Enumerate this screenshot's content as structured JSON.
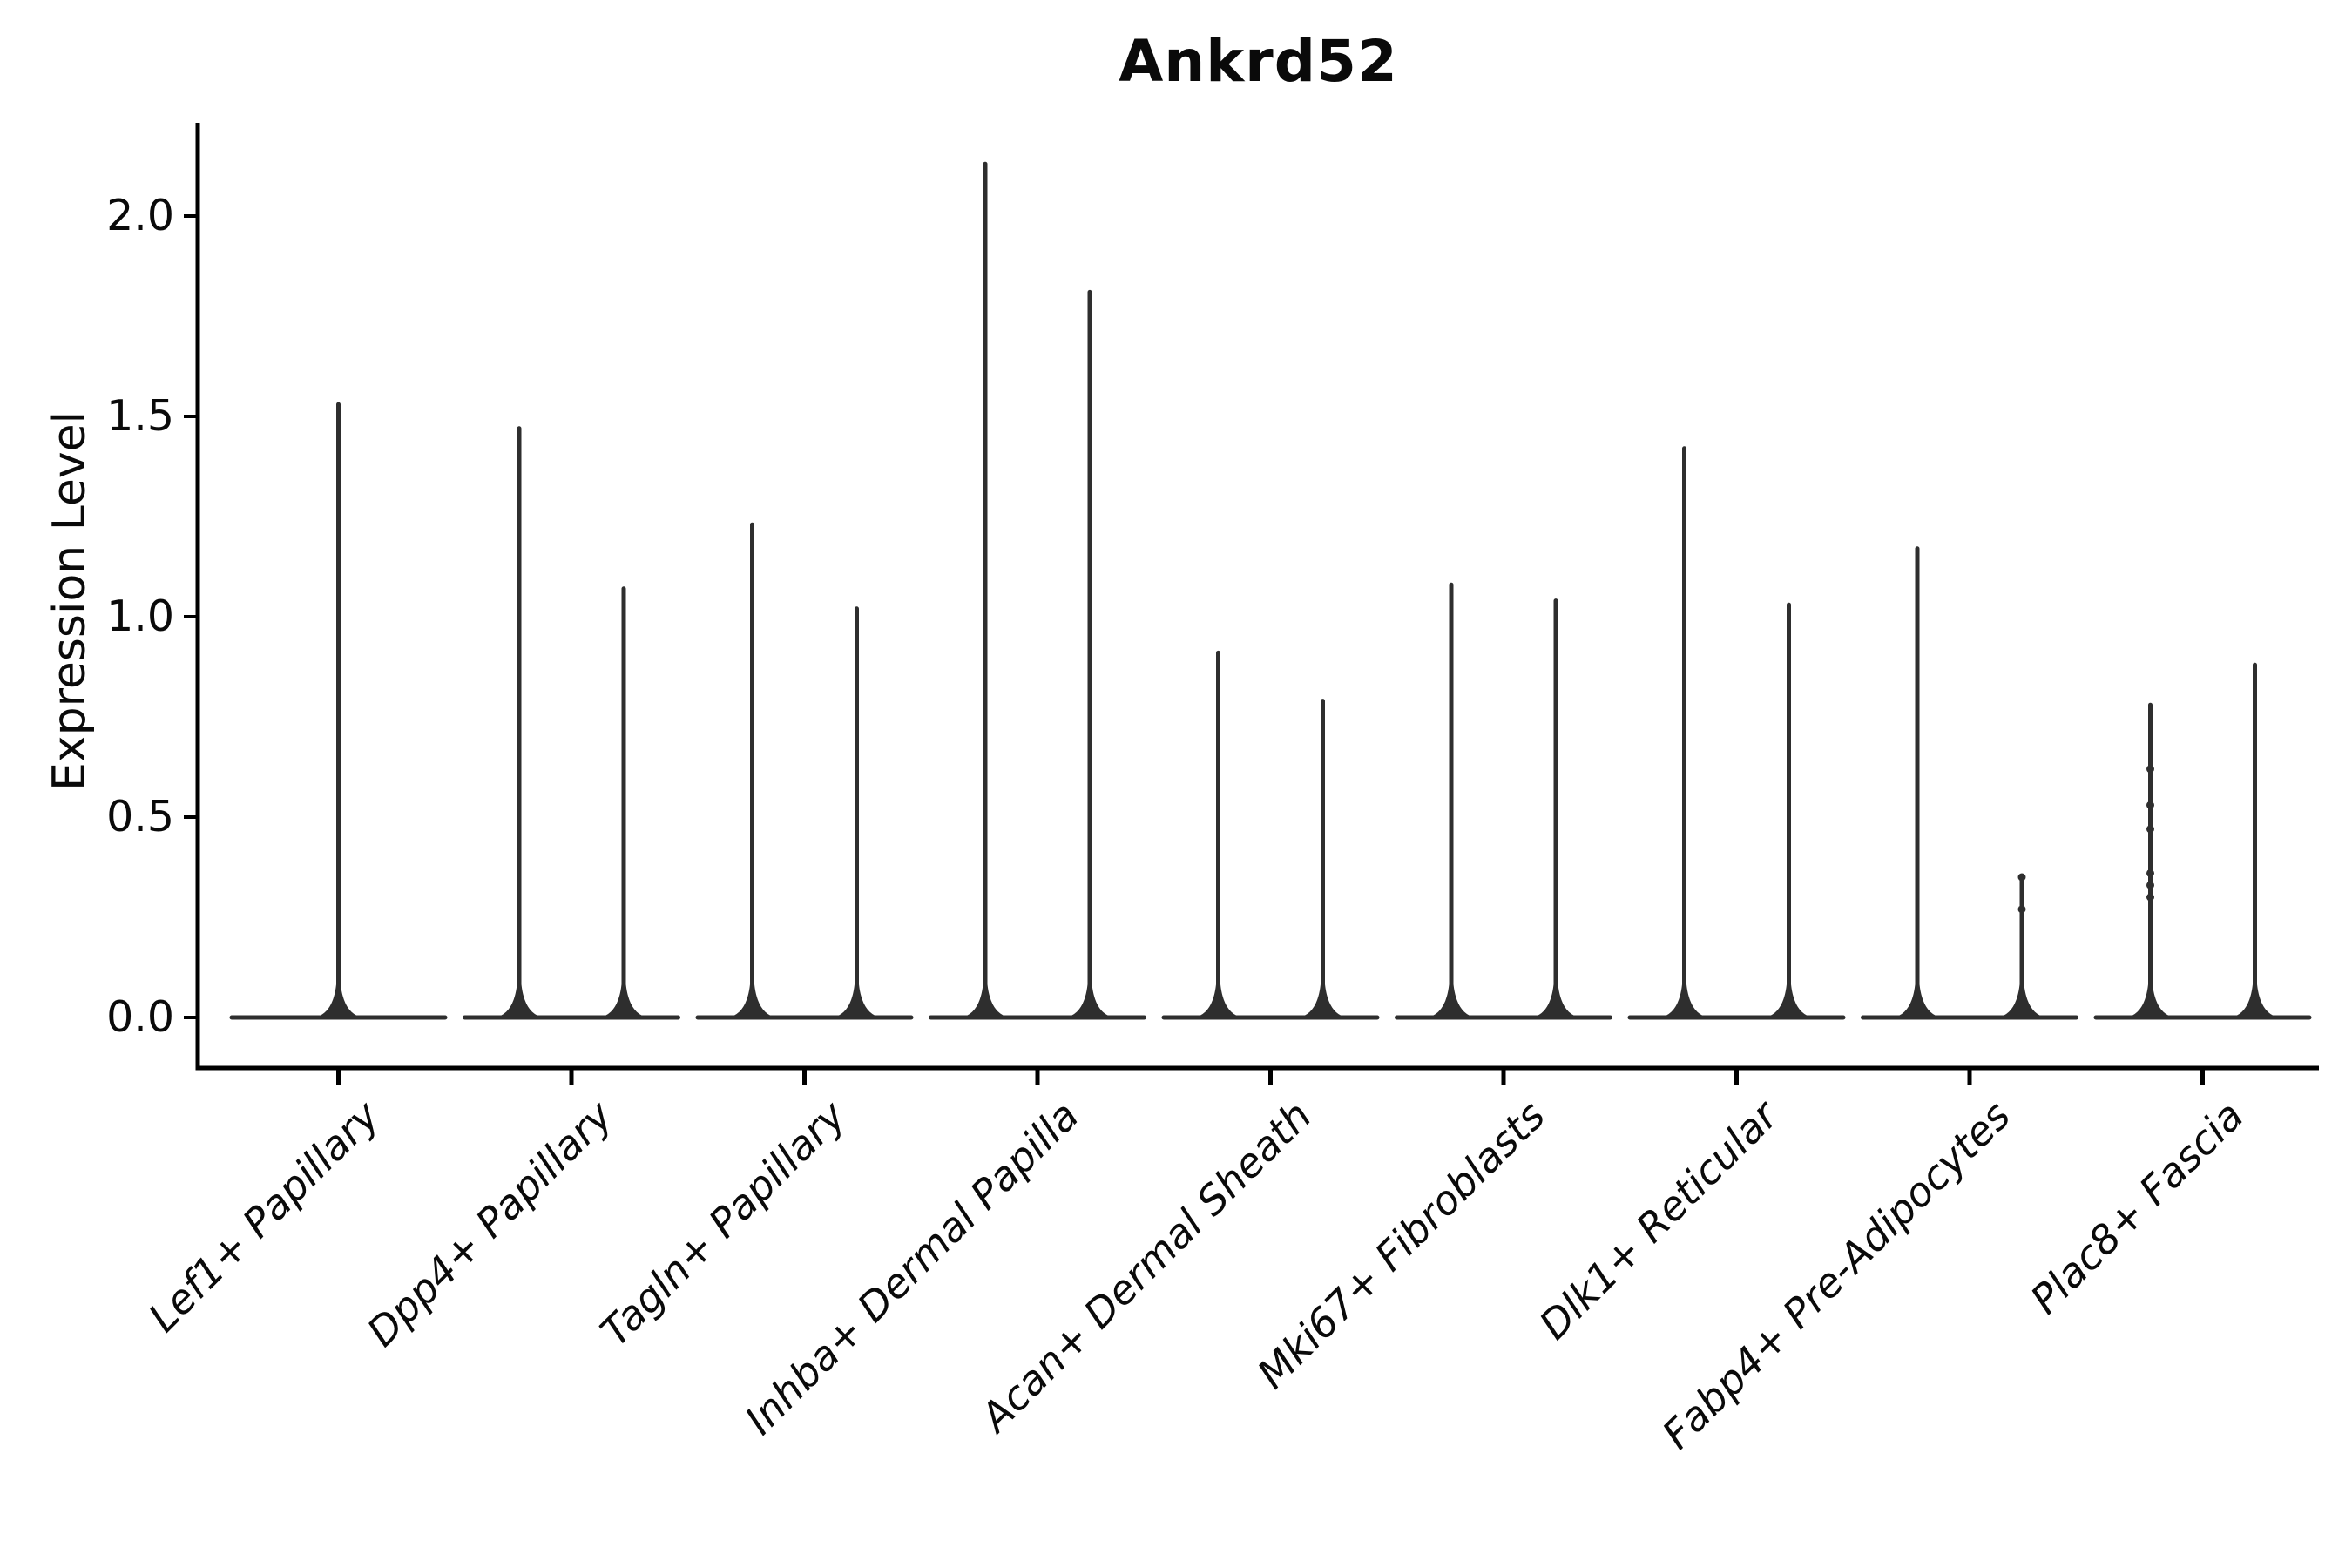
{
  "figure": {
    "title": "Ankrd52",
    "ylabel": "Expression Level"
  },
  "chart_data": {
    "type": "violin",
    "title": "Ankrd52",
    "xlabel": "",
    "ylabel": "Expression Level",
    "yticks": [
      0.0,
      0.5,
      1.0,
      1.5,
      2.0
    ],
    "ylim": [
      -0.13,
      2.23
    ],
    "grid": false,
    "legend": "none",
    "xtick_rotation_deg": 45,
    "xtick_style": "italic",
    "shape_note": "zero-inflated violins: each violin collapses to a wide flat line at 0 with a thin density spike rising to the max expression value",
    "categories": [
      {
        "label": "Lef1+ Papillary",
        "violins": [
          {
            "max": 1.53,
            "dots": []
          }
        ]
      },
      {
        "label": "Dpp4+ Papillary",
        "violins": [
          {
            "max": 1.47,
            "dots": []
          },
          {
            "max": 1.07,
            "dots": []
          }
        ]
      },
      {
        "label": "Tagln+ Papillary",
        "violins": [
          {
            "max": 1.23,
            "dots": []
          },
          {
            "max": 1.02,
            "dots": []
          }
        ]
      },
      {
        "label": "Inhba+ Dermal Papilla",
        "violins": [
          {
            "max": 2.13,
            "dots": []
          },
          {
            "max": 1.81,
            "dots": []
          }
        ]
      },
      {
        "label": "Acan+ Dermal Sheath",
        "violins": [
          {
            "max": 0.91,
            "dots": []
          },
          {
            "max": 0.79,
            "dots": []
          }
        ]
      },
      {
        "label": "Mki67+ Fibroblasts",
        "violins": [
          {
            "max": 1.08,
            "dots": []
          },
          {
            "max": 1.04,
            "dots": []
          }
        ]
      },
      {
        "label": "Dlk1+ Reticular",
        "violins": [
          {
            "max": 1.42,
            "dots": []
          },
          {
            "max": 1.03,
            "dots": []
          }
        ]
      },
      {
        "label": "Fabp4+ Pre-Adipocytes",
        "violins": [
          {
            "max": 1.17,
            "dots": []
          },
          {
            "max": 0.35,
            "dots": [
              0.35,
              0.27
            ]
          }
        ]
      },
      {
        "label": "Plac8+ Fascia",
        "violins": [
          {
            "max": 0.78,
            "dots": [
              0.62,
              0.53,
              0.47,
              0.36,
              0.33,
              0.3
            ]
          },
          {
            "max": 0.88,
            "dots": []
          }
        ]
      }
    ],
    "colors": {
      "violin_stroke": "#2e2e2e",
      "axis": "#000000",
      "text": "#0a0a0a",
      "background": "#ffffff"
    }
  }
}
